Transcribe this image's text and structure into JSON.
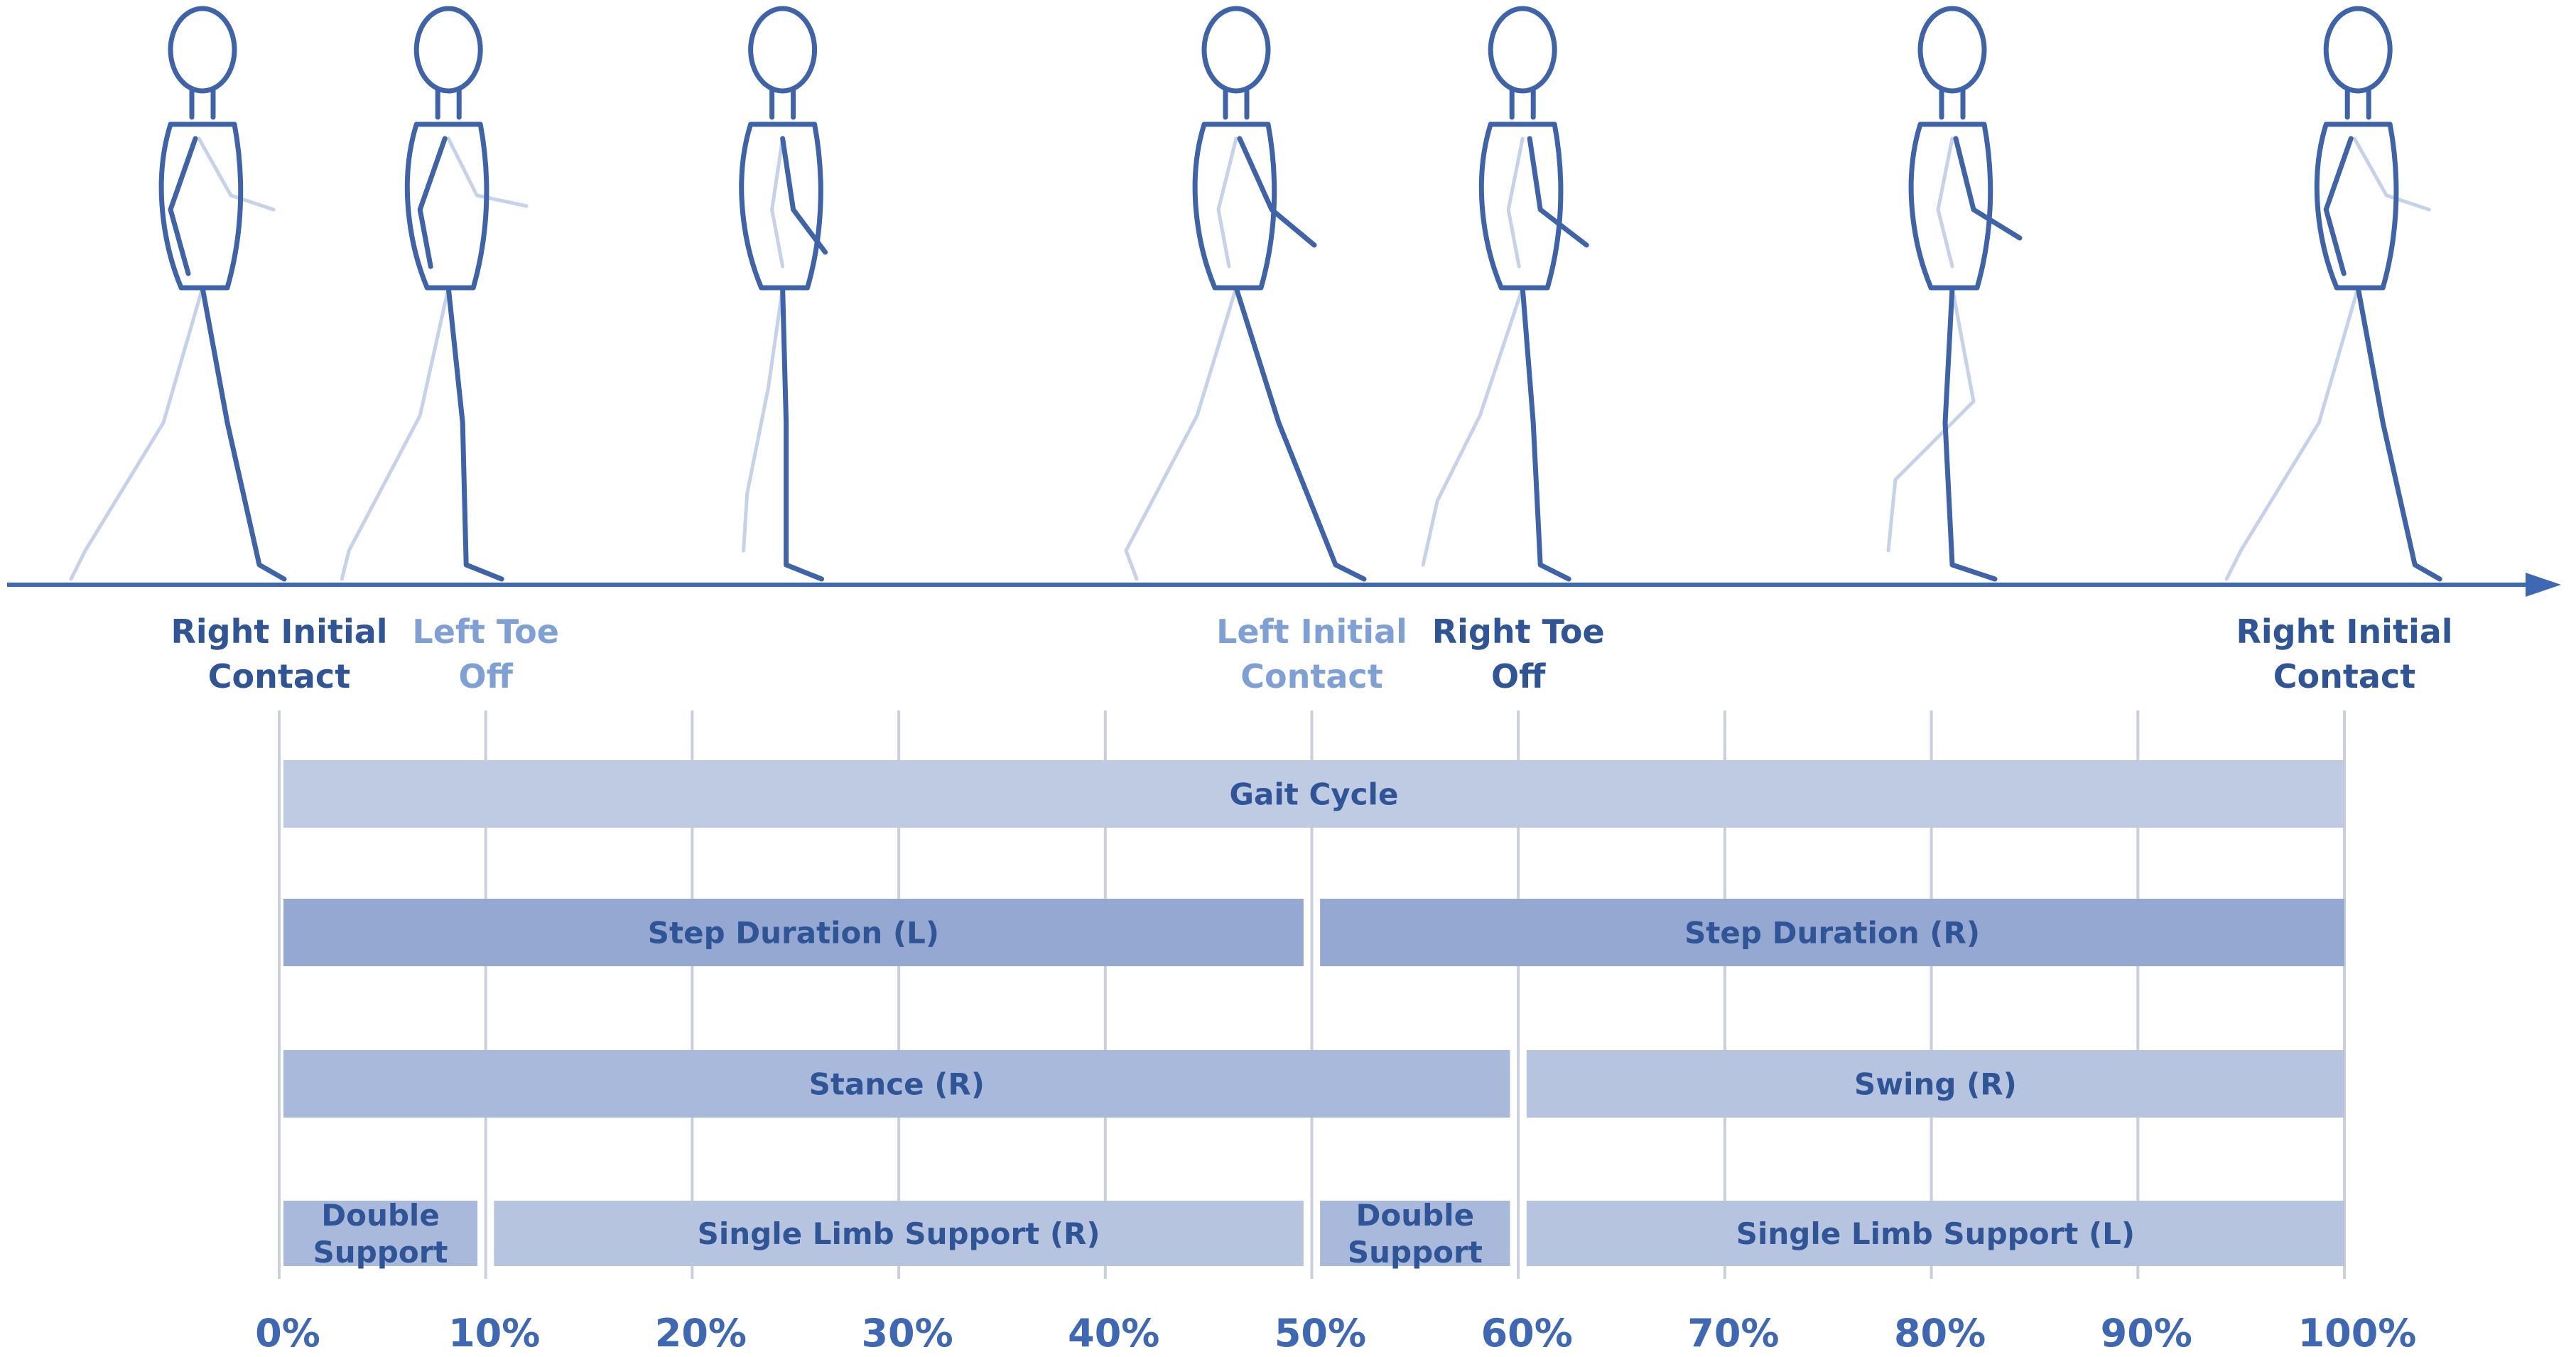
{
  "colors": {
    "axis": "#3e68b3",
    "dark_text": "#2f5597",
    "light_text": "#7ea0d5",
    "figure_dark": "#3f63a8",
    "figure_light": "#c5d2ea",
    "gridline": "#c9cfdc",
    "bar_light": "#bfcbe3",
    "bar_mid": "#a9b9db",
    "bar_dark": "#94a8d1",
    "bar_pale": "#b6c4e0"
  },
  "events": [
    {
      "line1": "Right Initial",
      "line2": "Contact",
      "percent": 0,
      "tone": "dark"
    },
    {
      "line1": "Left Toe",
      "line2": "Off",
      "percent": 10,
      "tone": "light"
    },
    {
      "line1": "Left Initial",
      "line2": "Contact",
      "percent": 50,
      "tone": "light"
    },
    {
      "line1": "Right Toe",
      "line2": "Off",
      "percent": 60,
      "tone": "dark"
    },
    {
      "line1": "Right Initial",
      "line2": "Contact",
      "percent": 100,
      "tone": "dark"
    }
  ],
  "figures": [
    {
      "pose": "heel-strike",
      "percent": 0
    },
    {
      "pose": "loading",
      "percent": 17
    },
    {
      "pose": "midstance",
      "percent": 31
    },
    {
      "pose": "terminal-stance",
      "percent": 50
    },
    {
      "pose": "pre-swing",
      "percent": 62
    },
    {
      "pose": "mid-swing",
      "percent": 80
    },
    {
      "pose": "heel-strike",
      "percent": 97
    }
  ],
  "bars": [
    {
      "id": "gait-cycle",
      "label": "Gait Cycle",
      "row": 0,
      "start": 0,
      "end": 100,
      "fill": "bar_light",
      "lines": [
        "Gait Cycle"
      ]
    },
    {
      "id": "step-duration-l",
      "label": "Step Duration (L)",
      "row": 1,
      "start": 0,
      "end": 49.6,
      "fill": "bar_dark",
      "lines": [
        "Step Duration (L)"
      ]
    },
    {
      "id": "step-duration-r",
      "label": "Step Duration (R)",
      "row": 1,
      "start": 50.4,
      "end": 100,
      "fill": "bar_dark",
      "lines": [
        "Step Duration (R)"
      ]
    },
    {
      "id": "stance-r",
      "label": "Stance (R)",
      "row": 2,
      "start": 0,
      "end": 59.6,
      "fill": "bar_mid",
      "lines": [
        "Stance (R)"
      ]
    },
    {
      "id": "swing-r",
      "label": "Swing (R)",
      "row": 2,
      "start": 60.4,
      "end": 100,
      "fill": "bar_pale",
      "lines": [
        "Swing (R)"
      ]
    },
    {
      "id": "double-support-1",
      "label": "Double Support",
      "row": 3,
      "start": 0,
      "end": 9.6,
      "fill": "bar_mid",
      "lines": [
        "Double",
        "Support"
      ]
    },
    {
      "id": "single-limb-support-r",
      "label": "Single Limb Support (R)",
      "row": 3,
      "start": 10.4,
      "end": 49.6,
      "fill": "bar_pale",
      "lines": [
        "Single Limb Support (R)"
      ]
    },
    {
      "id": "double-support-2",
      "label": "Double Support",
      "row": 3,
      "start": 50.4,
      "end": 59.6,
      "fill": "bar_mid",
      "lines": [
        "Double",
        "Support"
      ]
    },
    {
      "id": "single-limb-support-l",
      "label": "Single Limb Support (L)",
      "row": 3,
      "start": 60.4,
      "end": 100,
      "fill": "bar_pale",
      "lines": [
        "Single Limb Support (L)"
      ]
    }
  ],
  "ticks": [
    0,
    10,
    20,
    30,
    40,
    50,
    60,
    70,
    80,
    90,
    100
  ],
  "tick_suffix": "%"
}
